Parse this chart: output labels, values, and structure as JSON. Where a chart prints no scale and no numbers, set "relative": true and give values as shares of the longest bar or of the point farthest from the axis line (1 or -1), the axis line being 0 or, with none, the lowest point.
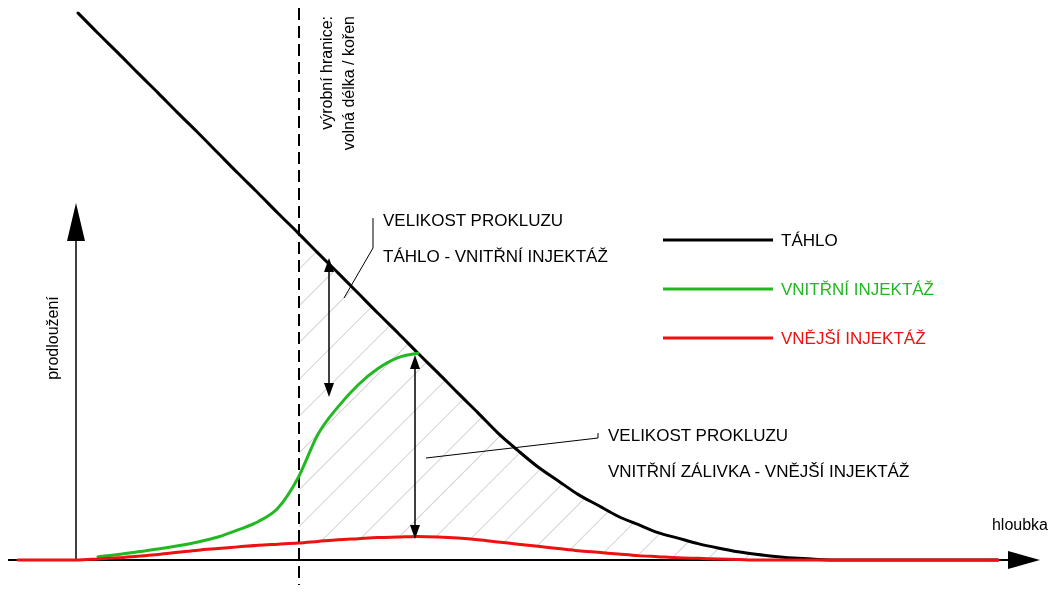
{
  "chart_data": {
    "type": "line",
    "relative": true,
    "ylabel": "prodloužení",
    "xlabel": "hloubka",
    "legend": "right",
    "categories": [
      null,
      null,
      null,
      null,
      null,
      null,
      null,
      null,
      null,
      null,
      null,
      null,
      null,
      null,
      null,
      null,
      null,
      null,
      null,
      null,
      null,
      null,
      null,
      null,
      null,
      null,
      null,
      null,
      null,
      null,
      null,
      null,
      null,
      null,
      null,
      null,
      null,
      null,
      null,
      null,
      null,
      null,
      null,
      null,
      null,
      null,
      null,
      null,
      null,
      null
    ],
    "series": [
      {
        "name": "TÁHLO",
        "color": "#000000",
        "values": [
          null,
          null,
          null,
          1.0,
          0.963,
          0.927,
          0.89,
          0.854,
          0.817,
          0.781,
          0.744,
          0.707,
          0.671,
          0.634,
          0.598,
          0.561,
          0.525,
          0.488,
          0.451,
          0.415,
          0.378,
          0.342,
          0.305,
          0.269,
          0.232,
          0.2,
          0.17,
          0.145,
          0.12,
          0.1,
          0.08,
          0.065,
          0.05,
          0.04,
          0.03,
          0.022,
          0.015,
          0.01,
          0.006,
          0.003,
          0.001,
          0,
          0,
          0,
          0,
          0,
          0,
          0,
          0,
          0
        ]
      },
      {
        "name": "VNITŘNÍ INJEKTÁŽ",
        "color": "#22b822",
        "values": [
          null,
          null,
          null,
          null,
          0.006,
          0.01,
          0.015,
          0.02,
          0.026,
          0.033,
          0.042,
          0.055,
          0.07,
          0.095,
          0.15,
          0.23,
          0.28,
          0.32,
          0.35,
          0.37,
          0.378,
          null,
          null,
          null,
          null,
          null,
          null,
          null,
          null,
          null,
          null,
          null,
          null,
          null,
          null,
          null,
          null,
          null,
          null,
          null,
          null,
          null,
          null,
          null,
          null,
          null,
          null,
          null,
          null,
          null
        ]
      },
      {
        "name": "VNĚJŠÍ INJEKTÁŽ",
        "color": "#ee1111",
        "values": [
          0,
          0,
          0,
          0,
          0.002,
          0.004,
          0.007,
          0.01,
          0.014,
          0.018,
          0.021,
          0.024,
          0.027,
          0.029,
          0.031,
          0.034,
          0.037,
          0.039,
          0.041,
          0.042,
          0.043,
          0.042,
          0.04,
          0.037,
          0.033,
          0.029,
          0.025,
          0.021,
          0.017,
          0.014,
          0.011,
          0.008,
          0.006,
          0.004,
          0.003,
          0.002,
          0.001,
          0,
          0,
          0,
          0,
          0,
          0,
          0,
          0,
          0,
          0,
          0,
          0,
          0
        ]
      }
    ],
    "annotations": [
      "výrobní hranice:\nvolná délka / kořen",
      "VELIKOST PROKLUZU\nTÁHLO - VNITŘNÍ INJEKTÁŽ",
      "VELIKOST PROKLUZU\nVNITŘNÍ ZÁLIVKA - VNĚJŠÍ INJEKTÁŽ"
    ]
  }
}
